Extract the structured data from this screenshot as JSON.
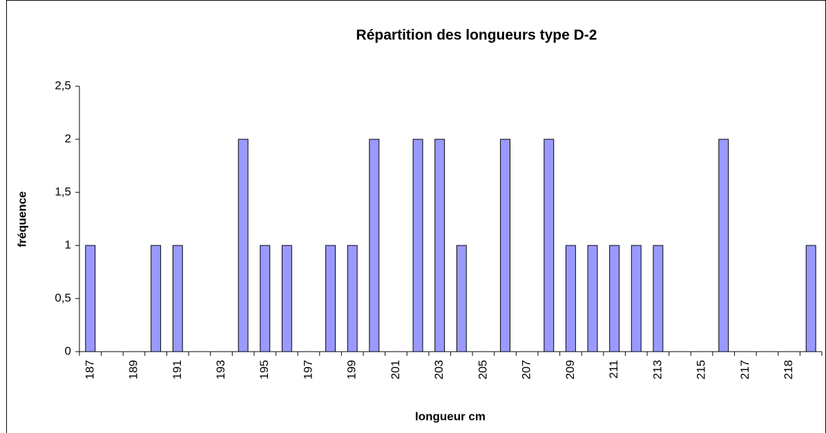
{
  "chart_data": {
    "type": "bar",
    "title": "Répartition des longueurs type D-2",
    "x_label": "longueur cm",
    "y_label": "fréquence",
    "categories": [
      "187",
      null,
      "189",
      null,
      "191",
      null,
      "193",
      null,
      "195",
      null,
      "197",
      null,
      "199",
      null,
      "201",
      null,
      "203",
      null,
      "205",
      null,
      "207",
      null,
      "209",
      null,
      "211",
      null,
      "213",
      null,
      "215",
      null,
      "217",
      null,
      "218",
      null
    ],
    "values": [
      1,
      0,
      0,
      1,
      1,
      0,
      0,
      2,
      1,
      1,
      0,
      1,
      1,
      2,
      0,
      2,
      2,
      1,
      0,
      2,
      0,
      2,
      1,
      1,
      1,
      1,
      1,
      0,
      0,
      2,
      0,
      0,
      0,
      1
    ],
    "color": "#9999ff",
    "ylim": [
      0,
      2.5
    ],
    "yticks": [
      0,
      {
        "value": 0.5,
        "label": "0,5"
      },
      1,
      {
        "value": 1.5,
        "label": "1,5"
      },
      2,
      {
        "value": 2.5,
        "label": "2,5"
      }
    ],
    "grid": false
  }
}
